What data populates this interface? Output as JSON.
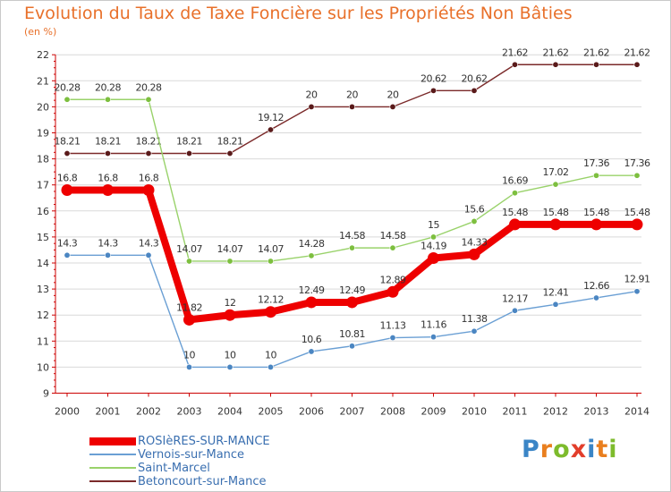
{
  "header": {
    "title": "Evolution du Taux de Taxe Foncière sur les Propriétés Non Bâties",
    "unit": "(en %)"
  },
  "colors": {
    "title": "#e8702a",
    "axis": "#cc0000",
    "grid": "#d9d9d9"
  },
  "logo": {
    "letters": [
      {
        "ch": "P",
        "color": "#3a85c6"
      },
      {
        "ch": "r",
        "color": "#e97f1f"
      },
      {
        "ch": "o",
        "color": "#7dbb2c"
      },
      {
        "ch": "x",
        "color": "#e23e2b"
      },
      {
        "ch": "i",
        "color": "#3a85c6"
      },
      {
        "ch": "t",
        "color": "#e97f1f"
      },
      {
        "ch": "i",
        "color": "#7dbb2c"
      }
    ]
  },
  "chart_data": {
    "type": "line",
    "title": "Evolution du Taux de Taxe Foncière sur les Propriétés Non Bâties",
    "ylabel": "(en %)",
    "xlabel": "",
    "categories": [
      "2000",
      "2001",
      "2002",
      "2003",
      "2004",
      "2005",
      "2006",
      "2007",
      "2008",
      "2009",
      "2010",
      "2011",
      "2012",
      "2013",
      "2014"
    ],
    "ylim": [
      9,
      22
    ],
    "yticks": [
      9,
      10,
      11,
      12,
      13,
      14,
      15,
      16,
      17,
      18,
      19,
      20,
      21,
      22
    ],
    "grid": true,
    "legend_position": "bottom-left",
    "series": [
      {
        "name": "Betoncourt-sur-Mance",
        "color": "#7b2a2a",
        "marker": "#5a1a1a",
        "values": [
          18.21,
          18.21,
          18.21,
          18.21,
          18.21,
          19.12,
          20,
          20,
          20,
          20.62,
          20.62,
          21.62,
          21.62,
          21.62,
          21.62
        ],
        "labels": [
          "18.21",
          "18.21",
          "18.21",
          "18.21",
          "18.21",
          "19.12",
          "20",
          "20",
          "20",
          "20.62",
          "20.62",
          "21.62",
          "21.62",
          "21.62",
          "21.62"
        ]
      },
      {
        "name": "Saint-Marcel",
        "color": "#99d26a",
        "marker": "#7dbf3f",
        "values": [
          20.28,
          20.28,
          20.28,
          14.07,
          14.07,
          14.07,
          14.28,
          14.58,
          14.58,
          15,
          15.6,
          16.69,
          17.02,
          17.36,
          17.36
        ],
        "labels": [
          "20.28",
          "20.28",
          "20.28",
          "14.07",
          "14.07",
          "14.07",
          "14.28",
          "14.58",
          "14.58",
          "15",
          "15.6",
          "16.69",
          "17.02",
          "17.36",
          "17.36"
        ]
      },
      {
        "name": "Vernois-sur-Mance",
        "color": "#6a9fd4",
        "marker": "#4b86c2",
        "values": [
          14.3,
          14.3,
          14.3,
          10,
          10,
          10,
          10.6,
          10.81,
          11.13,
          11.16,
          11.38,
          12.17,
          12.41,
          12.66,
          12.91
        ],
        "labels": [
          "14.3",
          "14.3",
          "14.3",
          "10",
          "10",
          "10",
          "10.6",
          "10.81",
          "11.13",
          "11.16",
          "11.38",
          "12.17",
          "12.41",
          "12.66",
          "12.91"
        ]
      },
      {
        "name": "ROSIèRES-SUR-MANCE",
        "color": "#ee0000",
        "marker": "#ee0000",
        "bold": true,
        "values": [
          16.8,
          16.8,
          16.8,
          11.82,
          12,
          12.12,
          12.49,
          12.49,
          12.89,
          14.19,
          14.33,
          15.48,
          15.48,
          15.48,
          15.48
        ],
        "labels": [
          "16.8",
          "16.8",
          "16.8",
          "11.82",
          "12",
          "12.12",
          "12.49",
          "12.49",
          "12.89",
          "14.19",
          "14.33",
          "15.48",
          "15.48",
          "15.48",
          "15.48"
        ]
      }
    ],
    "legend": [
      {
        "name": "ROSIèRES-SUR-MANCE",
        "color": "#ee0000",
        "bold": true
      },
      {
        "name": "Vernois-sur-Mance",
        "color": "#6a9fd4",
        "bold": false
      },
      {
        "name": "Saint-Marcel",
        "color": "#99d26a",
        "bold": false
      },
      {
        "name": "Betoncourt-sur-Mance",
        "color": "#7b2a2a",
        "bold": false
      }
    ]
  }
}
